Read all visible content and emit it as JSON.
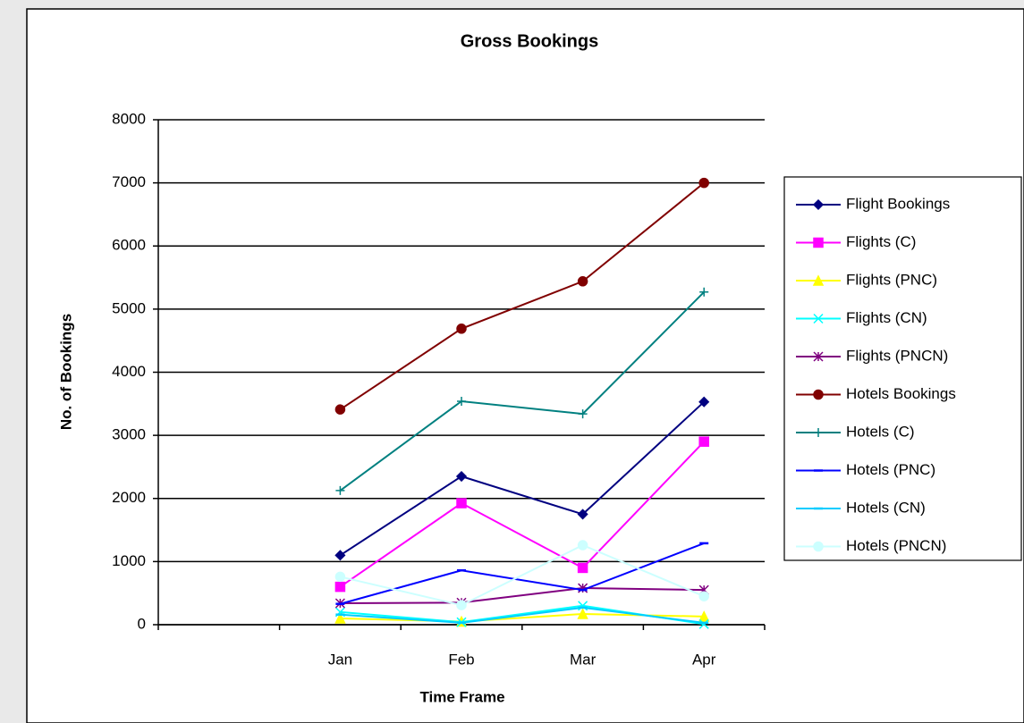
{
  "chart_data": {
    "type": "line",
    "title": "Gross Bookings",
    "x_label": "Time Frame",
    "y_label": "No. of Bookings",
    "categories": [
      null,
      "Jan",
      "Feb",
      "Mar",
      "Apr"
    ],
    "ylim": [
      0,
      8000
    ],
    "yticks": [
      0,
      1000,
      2000,
      3000,
      4000,
      5000,
      6000,
      7000,
      8000
    ],
    "grid": true,
    "legend": "right",
    "series": [
      {
        "name": "Flight Bookings",
        "color": "#000080",
        "marker": "diamond",
        "values": [
          null,
          1100,
          2350,
          1750,
          3530
        ]
      },
      {
        "name": "Flights (C)",
        "color": "#ff00ff",
        "marker": "square",
        "values": [
          null,
          600,
          1925,
          900,
          2900
        ]
      },
      {
        "name": "Flights (PNC)",
        "color": "#ffff00",
        "marker": "triangle",
        "values": [
          null,
          100,
          50,
          170,
          130
        ]
      },
      {
        "name": "Flights (CN)",
        "color": "#00ffff",
        "marker": "x",
        "values": [
          null,
          200,
          40,
          300,
          10
        ]
      },
      {
        "name": "Flights (PNCN)",
        "color": "#800080",
        "marker": "star",
        "values": [
          null,
          340,
          350,
          580,
          550
        ]
      },
      {
        "name": "Hotels Bookings",
        "color": "#800000",
        "marker": "circle",
        "values": [
          null,
          3410,
          4690,
          5440,
          7000
        ]
      },
      {
        "name": "Hotels (C)",
        "color": "#008080",
        "marker": "plus",
        "values": [
          null,
          2125,
          3540,
          3340,
          5270
        ]
      },
      {
        "name": "Hotels (PNC)",
        "color": "#0000ff",
        "marker": "dash",
        "values": [
          null,
          330,
          860,
          550,
          1290
        ]
      },
      {
        "name": "Hotels (CN)",
        "color": "#00ccff",
        "marker": "dash",
        "values": [
          null,
          160,
          30,
          270,
          30
        ]
      },
      {
        "name": "Hotels (PNCN)",
        "color": "#ccffff",
        "marker": "circle",
        "values": [
          null,
          760,
          310,
          1260,
          450
        ]
      }
    ]
  }
}
